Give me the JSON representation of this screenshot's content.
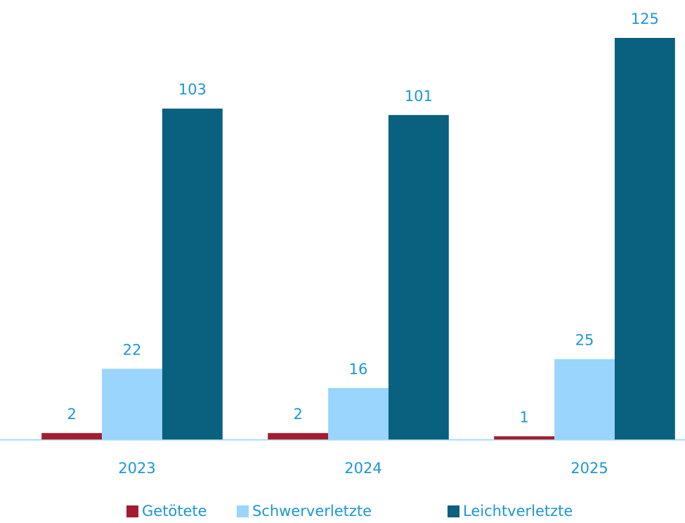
{
  "chart_data": {
    "type": "bar",
    "categories": [
      "2023",
      "2024",
      "2025"
    ],
    "series": [
      {
        "name": "Getötete",
        "color": "#a51c30",
        "values": [
          2,
          2,
          1
        ]
      },
      {
        "name": "Schwerverletzte",
        "color": "#99d5fd",
        "values": [
          22,
          16,
          25
        ]
      },
      {
        "name": "Leichtverletzte",
        "color": "#09607f",
        "values": [
          103,
          101,
          125
        ]
      }
    ],
    "legend": "bottom"
  }
}
